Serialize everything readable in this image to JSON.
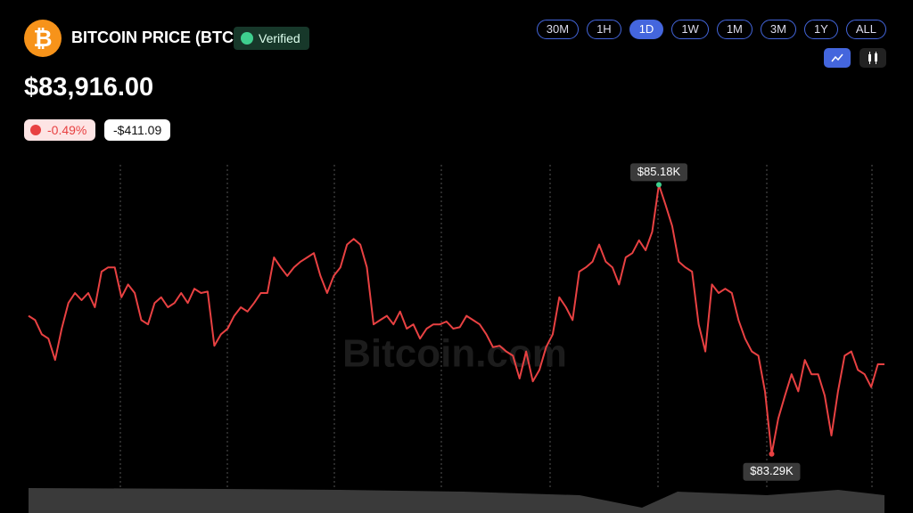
{
  "header": {
    "logo_symbol": "₿",
    "title": "BITCOIN PRICE (BTC)",
    "badge": "Verified",
    "price": "$83,916.00",
    "change_percent": "-0.49%",
    "change_amount": "-$411.09"
  },
  "controls": {
    "ranges": [
      "30M",
      "1H",
      "1D",
      "1W",
      "1M",
      "3M",
      "1Y",
      "ALL"
    ],
    "active_range": "1D"
  },
  "watermark": "Bitcoin.com",
  "chart_data": {
    "type": "line",
    "color": "#e84142",
    "ylim": [
      83.07,
      85.32
    ],
    "values": [
      84.26,
      84.23,
      84.13,
      84.1,
      83.95,
      84.17,
      84.35,
      84.42,
      84.37,
      84.42,
      84.32,
      84.57,
      84.6,
      84.6,
      84.39,
      84.48,
      84.42,
      84.23,
      84.2,
      84.35,
      84.39,
      84.32,
      84.35,
      84.42,
      84.35,
      84.45,
      84.42,
      84.43,
      84.05,
      84.13,
      84.17,
      84.26,
      84.32,
      84.29,
      84.35,
      84.42,
      84.42,
      84.67,
      84.6,
      84.54,
      84.6,
      84.64,
      84.67,
      84.7,
      84.54,
      84.42,
      84.54,
      84.6,
      84.76,
      84.8,
      84.76,
      84.6,
      84.2,
      84.23,
      84.26,
      84.2,
      84.29,
      84.17,
      84.2,
      84.1,
      84.17,
      84.2,
      84.2,
      84.22,
      84.17,
      84.18,
      84.26,
      84.23,
      84.2,
      84.13,
      84.04,
      84.05,
      84.01,
      83.98,
      83.82,
      84.01,
      83.8,
      83.88,
      84.04,
      84.13,
      84.39,
      84.32,
      84.23,
      84.57,
      84.6,
      84.64,
      84.76,
      84.64,
      84.6,
      84.48,
      84.67,
      84.7,
      84.79,
      84.72,
      84.85,
      85.18,
      85.04,
      84.89,
      84.64,
      84.6,
      84.57,
      84.2,
      84.01,
      84.48,
      84.42,
      84.45,
      84.42,
      84.23,
      84.1,
      84.01,
      83.98,
      83.73,
      83.29,
      83.54,
      83.7,
      83.85,
      83.73,
      83.95,
      83.85,
      83.85,
      83.7,
      83.42,
      83.73,
      83.98,
      84.01,
      83.88,
      83.85,
      83.76,
      83.92,
      83.92
    ],
    "annotations": [
      {
        "label": "$85.18K",
        "value": 85.18,
        "color": "#3ecf8e"
      },
      {
        "label": "$83.29K",
        "value": 83.29,
        "color": "#e84142"
      }
    ]
  }
}
